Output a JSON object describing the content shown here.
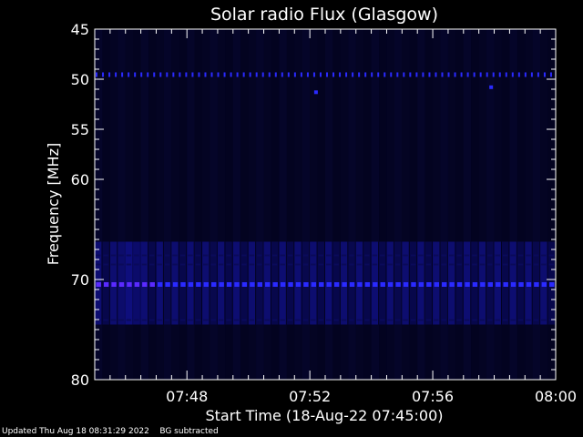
{
  "chart_data": {
    "type": "heatmap",
    "title": "Solar radio Flux (Glasgow)",
    "xlabel": "Start Time (18-Aug-22 07:45:00)",
    "ylabel": "Frequency [MHz]",
    "x_ticks": [
      "07:48",
      "07:52",
      "07:56",
      "08:00"
    ],
    "x_tick_minutes": [
      3,
      7,
      11,
      15
    ],
    "x_range_minutes": [
      0,
      15
    ],
    "y_ticks": [
      45,
      50,
      55,
      60,
      70,
      80
    ],
    "y_range": [
      45,
      80
    ],
    "colors": {
      "background": "#000000",
      "panel": "#03031f",
      "band": "#10108a",
      "band_dark": "#0a0a5a",
      "line": "#2a2aff",
      "line_violet": "#5a2aff"
    },
    "features": {
      "dotted_line_mhz": 49.5,
      "broad_band_mhz": [
        69.5,
        74.5
      ],
      "bright_line_mhz": 70.5,
      "isolated_spots": [
        {
          "minute": 7.2,
          "mhz": 51.3
        },
        {
          "minute": 12.9,
          "mhz": 50.8
        }
      ]
    }
  },
  "footer": {
    "updated": "Updated Thu Aug 18 08:31:29 2022",
    "note": "BG subtracted"
  }
}
